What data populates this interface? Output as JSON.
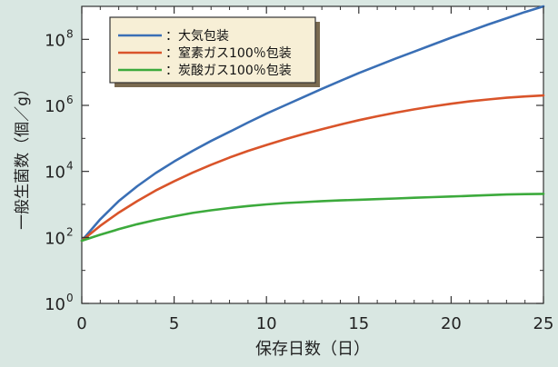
{
  "chart_data": {
    "type": "line",
    "xlabel": "保存日数（日）",
    "ylabel": "一般生菌数（個／g）",
    "xlim": [
      0,
      25
    ],
    "ylim_log10": [
      0,
      9
    ],
    "y_scale": "log",
    "x_ticks": [
      "0",
      "5",
      "10",
      "15",
      "20",
      "25"
    ],
    "y_ticks": [
      {
        "base": "10",
        "exp": "0"
      },
      {
        "base": "10",
        "exp": "2"
      },
      {
        "base": "10",
        "exp": "4"
      },
      {
        "base": "10",
        "exp": "6"
      },
      {
        "base": "10",
        "exp": "8"
      }
    ],
    "grid": false,
    "legend_placement": "top-left",
    "series": [
      {
        "name": "：大気包装",
        "color": "#3a6fb5",
        "x": [
          0,
          1,
          2,
          3,
          4,
          5,
          6,
          7,
          8,
          9,
          10,
          11,
          12,
          13,
          14,
          15,
          16,
          17,
          18,
          19,
          20,
          21,
          22,
          23,
          24,
          25
        ],
        "log10_y": [
          1.9,
          2.55,
          3.1,
          3.55,
          3.95,
          4.3,
          4.62,
          4.92,
          5.2,
          5.48,
          5.75,
          6.0,
          6.25,
          6.5,
          6.74,
          6.98,
          7.2,
          7.42,
          7.63,
          7.84,
          8.05,
          8.25,
          8.45,
          8.64,
          8.83,
          9.0
        ]
      },
      {
        "name": "：窒素ガス100％包装",
        "color": "#d9542a",
        "x": [
          0,
          1,
          2,
          3,
          4,
          5,
          6,
          7,
          8,
          9,
          10,
          11,
          12,
          13,
          14,
          15,
          16,
          17,
          18,
          19,
          20,
          21,
          22,
          23,
          24,
          25
        ],
        "log10_y": [
          1.9,
          2.35,
          2.75,
          3.1,
          3.42,
          3.7,
          3.96,
          4.2,
          4.42,
          4.62,
          4.8,
          4.97,
          5.13,
          5.28,
          5.42,
          5.55,
          5.67,
          5.78,
          5.88,
          5.97,
          6.05,
          6.12,
          6.18,
          6.23,
          6.27,
          6.3
        ]
      },
      {
        "name": "：炭酸ガス100％包装",
        "color": "#3caa3c",
        "x": [
          0,
          1,
          2,
          3,
          4,
          5,
          6,
          7,
          8,
          9,
          10,
          11,
          12,
          13,
          14,
          15,
          16,
          17,
          18,
          19,
          20,
          21,
          22,
          23,
          24,
          25
        ],
        "log10_y": [
          1.9,
          2.08,
          2.25,
          2.4,
          2.53,
          2.64,
          2.74,
          2.82,
          2.89,
          2.95,
          3.0,
          3.04,
          3.07,
          3.1,
          3.12,
          3.14,
          3.16,
          3.18,
          3.2,
          3.22,
          3.24,
          3.26,
          3.28,
          3.3,
          3.31,
          3.32
        ]
      }
    ]
  }
}
